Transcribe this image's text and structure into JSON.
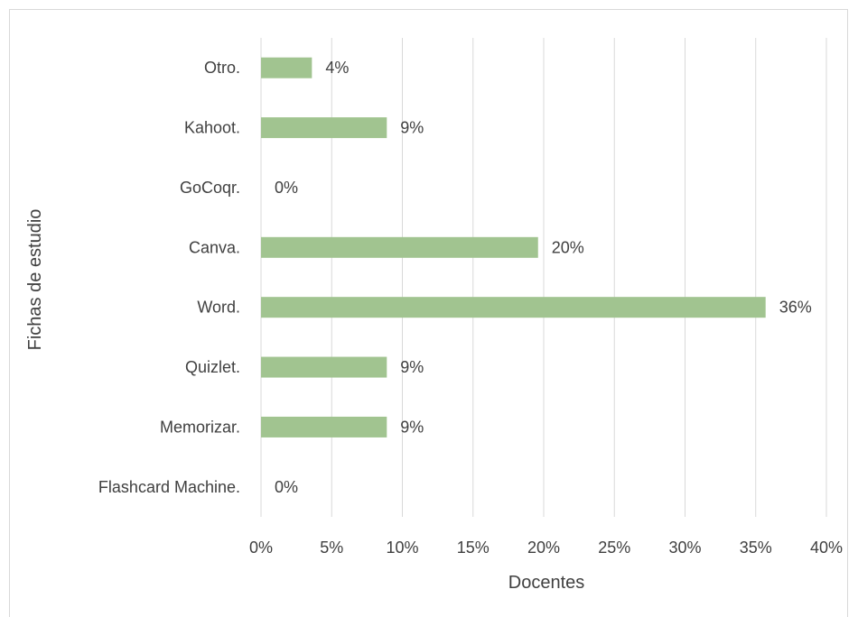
{
  "chart_data": {
    "type": "bar",
    "orientation": "horizontal",
    "title": "",
    "xlabel": "Docentes",
    "ylabel": "Fichas de estudio",
    "categories": [
      "Otro.",
      "Kahoot.",
      "GoCoqr.",
      "Canva.",
      "Word.",
      "Quizlet.",
      "Memorizar.",
      "Flashcard Machine."
    ],
    "values": [
      3.6,
      8.9,
      0,
      19.6,
      35.7,
      8.9,
      8.9,
      0
    ],
    "data_labels": [
      "4%",
      "9%",
      "0%",
      "20%",
      "36%",
      "9%",
      "9%",
      "0%"
    ],
    "xlim": [
      0,
      40
    ],
    "x_ticks": [
      0,
      5,
      10,
      15,
      20,
      25,
      30,
      35,
      40
    ],
    "x_tick_labels": [
      "0%",
      "5%",
      "10%",
      "15%",
      "20%",
      "25%",
      "30%",
      "35%",
      "40%"
    ],
    "grid": "vertical",
    "legend": "none",
    "colors": {
      "bar": "#a1c490",
      "grid": "#d9d9d9",
      "text": "#404040"
    }
  }
}
